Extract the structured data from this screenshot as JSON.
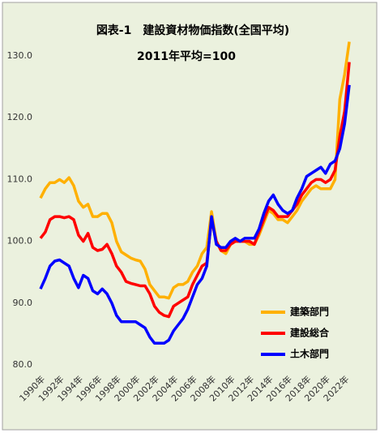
{
  "chart_data": {
    "type": "line",
    "title": "図表-1　建設資材物価指数(全国平均)",
    "subtitle": "2011年平均=100",
    "x": [
      1990,
      1990.5,
      1991,
      1991.5,
      1992,
      1992.5,
      1993,
      1993.5,
      1994,
      1994.5,
      1995,
      1995.5,
      1996,
      1996.5,
      1997,
      1997.5,
      1998,
      1998.5,
      1999,
      1999.5,
      2000,
      2000.5,
      2001,
      2001.5,
      2002,
      2002.5,
      2003,
      2003.5,
      2004,
      2004.5,
      2005,
      2005.5,
      2006,
      2006.5,
      2007,
      2007.5,
      2008,
      2008.5,
      2009,
      2009.5,
      2010,
      2010.5,
      2011,
      2011.5,
      2012,
      2012.5,
      2013,
      2013.5,
      2014,
      2014.5,
      2015,
      2015.5,
      2016,
      2016.5,
      2017,
      2017.5,
      2018,
      2018.5,
      2019,
      2019.5,
      2020,
      2020.5,
      2021,
      2021.5,
      2022,
      2022.5
    ],
    "series": [
      {
        "name": "建築部門",
        "color": "#ffb000",
        "values": [
          107,
          108.5,
          109.5,
          109.5,
          110,
          109.5,
          110.3,
          109,
          106.5,
          105.5,
          106,
          104,
          104,
          104.5,
          104.5,
          103,
          100,
          98.3,
          97.8,
          97.3,
          97,
          96.8,
          95.5,
          93,
          92,
          91,
          91,
          90.8,
          92.5,
          93,
          93,
          93.5,
          95,
          96,
          98,
          99,
          104.8,
          100,
          98.5,
          98,
          99.5,
          100,
          100,
          100,
          99.5,
          99.5,
          101,
          103,
          105,
          104.5,
          103.5,
          103.5,
          103,
          104,
          105,
          106.5,
          107.5,
          108.5,
          109,
          108.5,
          108.5,
          108.5,
          110,
          123,
          127,
          132.3
        ]
      },
      {
        "name": "建設総合",
        "color": "#ff0000",
        "values": [
          100.5,
          101.5,
          103.5,
          104,
          104,
          103.8,
          104,
          103.5,
          101,
          100,
          101.3,
          99,
          98.5,
          98.7,
          99.5,
          98,
          96,
          95,
          93.5,
          93.2,
          93,
          92.8,
          92.8,
          91.5,
          89.5,
          88.5,
          88,
          87.8,
          89.5,
          90,
          90.5,
          91,
          93,
          94.5,
          96,
          96.5,
          103.5,
          100,
          98.5,
          98.5,
          99.5,
          100,
          100,
          100,
          100,
          99.5,
          101.5,
          103.5,
          105.5,
          105,
          104,
          104,
          104,
          105,
          106,
          107.5,
          108.5,
          109.5,
          110,
          110,
          109.5,
          110,
          111.5,
          117,
          121,
          129
        ]
      },
      {
        "name": "土木部門",
        "color": "#0000ff",
        "values": [
          92.3,
          94,
          96,
          96.8,
          97,
          96.5,
          96,
          94,
          92.5,
          94.5,
          94,
          92,
          91.5,
          92.3,
          91.5,
          90,
          88,
          87,
          87,
          87,
          87,
          86.5,
          86,
          84.5,
          83.5,
          83.5,
          83.5,
          84,
          85.5,
          86.5,
          87.5,
          89,
          91,
          93,
          94,
          96,
          104,
          99.5,
          99,
          99,
          100,
          100.5,
          100,
          100.5,
          100.5,
          100.5,
          102,
          104.5,
          106.5,
          107.5,
          106,
          105,
          104.5,
          105,
          107,
          108.5,
          110.5,
          111,
          111.5,
          112,
          111,
          112.5,
          113,
          115,
          119,
          125.3
        ]
      }
    ],
    "xlim": [
      1990,
      2023
    ],
    "xticks": [
      {
        "value": 1990,
        "label": "1990年"
      },
      {
        "value": 1992,
        "label": "1992年"
      },
      {
        "value": 1994,
        "label": "1994年"
      },
      {
        "value": 1996,
        "label": "1996年"
      },
      {
        "value": 1998,
        "label": "1998年"
      },
      {
        "value": 2000,
        "label": "2000年"
      },
      {
        "value": 2002,
        "label": "2002年"
      },
      {
        "value": 2004,
        "label": "2004年"
      },
      {
        "value": 2006,
        "label": "2006年"
      },
      {
        "value": 2008,
        "label": "2008年"
      },
      {
        "value": 2010,
        "label": "2010年"
      },
      {
        "value": 2012,
        "label": "2012年"
      },
      {
        "value": 2014,
        "label": "2014年"
      },
      {
        "value": 2016,
        "label": "2016年"
      },
      {
        "value": 2018,
        "label": "2018年"
      },
      {
        "value": 2020,
        "label": "2020年"
      },
      {
        "value": 2022,
        "label": "2022年"
      }
    ],
    "ylim": [
      80,
      130
    ],
    "yticks": [
      {
        "value": 80,
        "label": "80.0"
      },
      {
        "value": 90,
        "label": "90.0"
      },
      {
        "value": 100,
        "label": "100.0"
      },
      {
        "value": 110,
        "label": "110.0"
      },
      {
        "value": 120,
        "label": "120.0"
      },
      {
        "value": 130,
        "label": "130.0"
      }
    ],
    "legend": "lower right"
  }
}
